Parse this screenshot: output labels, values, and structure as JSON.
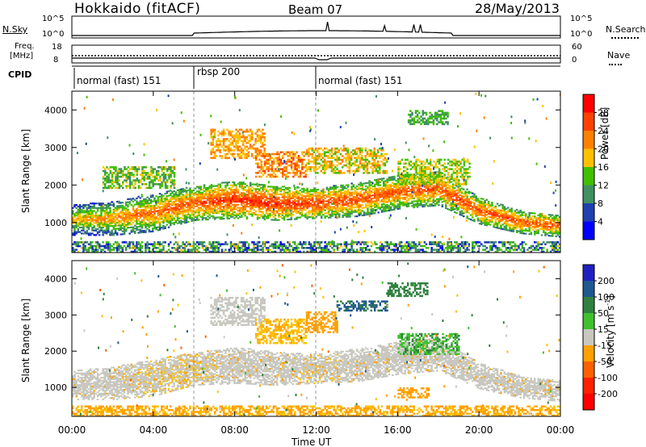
{
  "header": {
    "title": "Hokkaido (fitACF)",
    "beam": "Beam 07",
    "date": "28/May/2013"
  },
  "noise_panel": {
    "left_label": "N.Sky",
    "right_label": "N.Search",
    "y_ticks_left": [
      "10^5",
      "10^0"
    ],
    "y_ticks_right": [
      "10^5",
      "10^0"
    ]
  },
  "freq_panel": {
    "left_label_1": "Freq.",
    "left_label_2": "[MHz]",
    "right_label": "Nave",
    "y_ticks_left": [
      "18",
      "8"
    ],
    "y_ticks_right": [
      "60",
      "0"
    ]
  },
  "cpid_panel": {
    "label": "CPID",
    "segments": [
      {
        "label": "normal (fast) 151",
        "start_hour": 0,
        "end_hour": 6
      },
      {
        "label": "rbsp 200",
        "start_hour": 6,
        "end_hour": 12
      },
      {
        "label": "normal (fast) 151",
        "start_hour": 12,
        "end_hour": 24
      }
    ]
  },
  "time_axis": {
    "xlabel": "Time UT",
    "ticks": [
      "00:00",
      "04:00",
      "08:00",
      "12:00",
      "16:00",
      "20:00",
      "00:00"
    ]
  },
  "power_colorbar": {
    "label": "Power [dB]",
    "ticks": [
      "28",
      "24",
      "20",
      "16",
      "12",
      "8",
      "4"
    ],
    "colors": [
      "#ff0000",
      "#ff4000",
      "#ff8000",
      "#ffc000",
      "#40c000",
      "#409060",
      "#2040b0",
      "#0000ff"
    ]
  },
  "velocity_colorbar": {
    "label": "Velocity [m s^-1]",
    "ticks": [
      "200",
      "100",
      "50",
      "15",
      "-15",
      "-50",
      "-100",
      "-200"
    ],
    "colors": [
      "#2020c0",
      "#205890",
      "#308040",
      "#40c030",
      "#c8c8c0",
      "#ffa000",
      "#ff6000",
      "#ff2000",
      "#ff0000"
    ]
  },
  "chart_data": [
    {
      "type": "heatmap",
      "panel": "power",
      "title": "",
      "xlabel": "",
      "ylabel": "Slant Range [km]",
      "xlim": [
        0,
        24
      ],
      "ylim": [
        200,
        4500
      ],
      "y_ticks": [
        1000,
        2000,
        3000,
        4000
      ],
      "colorbar_label": "Power [dB]",
      "colorbar_range": [
        0,
        32
      ],
      "bands": [
        {
          "x": [
            0,
            2,
            4,
            6,
            8,
            10,
            12,
            14,
            16,
            18,
            20,
            22,
            24
          ],
          "y_center": [
            1050,
            1100,
            1250,
            1500,
            1600,
            1500,
            1500,
            1600,
            1800,
            1900,
            1300,
            1000,
            900
          ],
          "y_halfwidth": [
            400,
            450,
            500,
            450,
            500,
            450,
            400,
            450,
            450,
            450,
            350,
            300,
            300
          ],
          "power": [
            20,
            22,
            24,
            26,
            28,
            28,
            27,
            26,
            25,
            26,
            26,
            26,
            25
          ]
        }
      ],
      "patches": [
        {
          "x": [
            6.8,
            9.5
          ],
          "y": [
            2700,
            3500
          ],
          "power": 20
        },
        {
          "x": [
            9.0,
            11.5
          ],
          "y": [
            2200,
            2900
          ],
          "power": 22
        },
        {
          "x": [
            1.5,
            5.0
          ],
          "y": [
            1900,
            2500
          ],
          "power": 14
        },
        {
          "x": [
            11.5,
            15.5
          ],
          "y": [
            2300,
            3000
          ],
          "power": 18
        },
        {
          "x": [
            16.0,
            19.5
          ],
          "y": [
            2000,
            2700
          ],
          "power": 16
        },
        {
          "x": [
            16.5,
            18.5
          ],
          "y": [
            3600,
            4000
          ],
          "power": 12
        }
      ],
      "ground_scatter_strip": {
        "y": [
          200,
          500
        ],
        "power": 10
      }
    },
    {
      "type": "heatmap",
      "panel": "velocity",
      "title": "",
      "xlabel": "Time UT",
      "ylabel": "Slant Range [km]",
      "xlim": [
        0,
        24
      ],
      "ylim": [
        200,
        4500
      ],
      "y_ticks": [
        1000,
        2000,
        3000,
        4000
      ],
      "colorbar_label": "Velocity [m s^-1]",
      "colorbar_range": [
        -250,
        250
      ],
      "bands": [
        {
          "x": [
            0,
            2,
            4,
            6,
            8,
            10,
            12,
            14,
            16,
            18,
            20,
            22,
            24
          ],
          "y_center": [
            1050,
            1100,
            1250,
            1500,
            1600,
            1500,
            1500,
            1600,
            1800,
            1900,
            1300,
            1000,
            900
          ],
          "y_halfwidth": [
            400,
            450,
            500,
            450,
            500,
            450,
            400,
            450,
            450,
            450,
            350,
            300,
            300
          ],
          "velocity": [
            -5,
            -5,
            -10,
            -10,
            -5,
            -5,
            -10,
            -5,
            -5,
            0,
            -5,
            -5,
            -5
          ]
        }
      ],
      "patches": [
        {
          "x": [
            6.8,
            9.5
          ],
          "y": [
            2700,
            3500
          ],
          "velocity": 0
        },
        {
          "x": [
            9.0,
            11.5
          ],
          "y": [
            2200,
            2900
          ],
          "velocity": -30
        },
        {
          "x": [
            11.5,
            13.0
          ],
          "y": [
            2500,
            3100
          ],
          "velocity": -60
        },
        {
          "x": [
            13.0,
            15.5
          ],
          "y": [
            3100,
            3400
          ],
          "velocity": 80
        },
        {
          "x": [
            15.5,
            17.5
          ],
          "y": [
            3500,
            3900
          ],
          "velocity": 60
        },
        {
          "x": [
            16.0,
            19.0
          ],
          "y": [
            1900,
            2500
          ],
          "velocity": 30
        },
        {
          "x": [
            16.0,
            17.5
          ],
          "y": [
            700,
            1000
          ],
          "velocity": -60
        }
      ],
      "ground_scatter_strip": {
        "y": [
          200,
          500
        ],
        "velocity": -40
      }
    }
  ]
}
